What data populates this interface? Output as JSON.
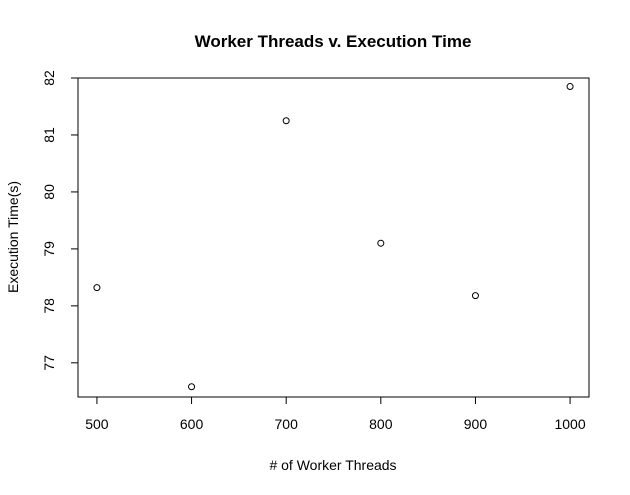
{
  "chart_data": {
    "type": "scatter",
    "title": "Worker Threads v. Execution Time",
    "xlabel": "# of Worker Threads",
    "ylabel": "Execution Time(s)",
    "x_ticks": [
      500,
      600,
      700,
      800,
      900,
      1000
    ],
    "y_ticks": [
      77,
      78,
      79,
      80,
      81,
      82
    ],
    "xlim": [
      480,
      1020
    ],
    "ylim": [
      76.4,
      82.0
    ],
    "grid": false,
    "legend": "none",
    "points": [
      {
        "x": 500,
        "y": 78.32
      },
      {
        "x": 600,
        "y": 76.58
      },
      {
        "x": 700,
        "y": 81.25
      },
      {
        "x": 800,
        "y": 79.1
      },
      {
        "x": 900,
        "y": 78.18
      },
      {
        "x": 1000,
        "y": 81.85
      }
    ]
  }
}
